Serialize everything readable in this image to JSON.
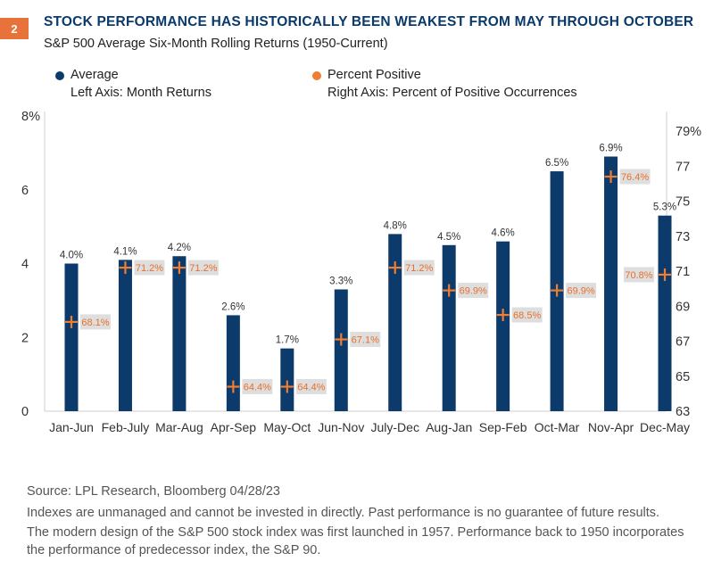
{
  "figure": {
    "number": "2",
    "title": "STOCK PERFORMANCE HAS HISTORICALLY BEEN WEAKEST FROM MAY THROUGH OCTOBER",
    "subtitle": "S&P 500 Average Six-Month Rolling Returns (1950-Current)"
  },
  "legend": {
    "average": {
      "name": "Average",
      "axis": "Left Axis: Month Returns",
      "color": "#0b3a6b"
    },
    "positive": {
      "name": "Percent Positive",
      "axis": "Right Axis: Percent of Positive Occurrences",
      "color": "#ef7d32"
    }
  },
  "chart_data": {
    "type": "bar",
    "categories": [
      "Jan-Jun",
      "Feb-July",
      "Mar-Aug",
      "Apr-Sep",
      "May-Oct",
      "Jun-Nov",
      "July-Dec",
      "Aug-Jan",
      "Sep-Feb",
      "Oct-Mar",
      "Nov-Apr",
      "Dec-May"
    ],
    "series": [
      {
        "name": "Average",
        "axis": "left",
        "type": "bar",
        "color": "#0b3a6b",
        "values": [
          4.0,
          4.1,
          4.2,
          2.6,
          1.7,
          3.3,
          4.8,
          4.5,
          4.6,
          6.5,
          6.9,
          5.3
        ],
        "labels": [
          "4.0%",
          "4.1%",
          "4.2%",
          "2.6%",
          "1.7%",
          "3.3%",
          "4.8%",
          "4.5%",
          "4.6%",
          "6.5%",
          "6.9%",
          "5.3%"
        ]
      },
      {
        "name": "Percent Positive",
        "axis": "right",
        "type": "marker",
        "color": "#ef7d32",
        "values": [
          68.1,
          71.2,
          71.2,
          64.4,
          64.4,
          67.1,
          71.2,
          69.9,
          68.5,
          69.9,
          76.4,
          70.8
        ],
        "labels": [
          "68.1%",
          "71.2%",
          "71.2%",
          "64.4%",
          "64.4%",
          "67.1%",
          "71.2%",
          "69.9%",
          "68.5%",
          "69.9%",
          "76.4%",
          "70.8%"
        ]
      }
    ],
    "left_axis": {
      "ylim": [
        0,
        8
      ],
      "ticks": [
        0,
        2,
        4,
        6,
        8
      ],
      "tick_labels": [
        "0",
        "2",
        "4",
        "6",
        "8%"
      ]
    },
    "right_axis": {
      "ylim": [
        63,
        79
      ],
      "ticks": [
        63,
        65,
        67,
        69,
        71,
        73,
        75,
        77,
        79
      ],
      "tick_labels": [
        "63",
        "65",
        "67",
        "69",
        "71",
        "73",
        "75",
        "77",
        "79%"
      ]
    },
    "grid": false,
    "legend_position": "top-left"
  },
  "footnotes": {
    "source": "Source: LPL Research, Bloomberg  04/28/23",
    "line1": "Indexes are unmanaged and cannot be invested in directly. Past performance is no guarantee of future results.",
    "line2": "The modern design of the S&P 500 stock index was first launched in 1957. Performance back to 1950 incorporates",
    "line3": "the performance of predecessor index, the S&P 90."
  }
}
